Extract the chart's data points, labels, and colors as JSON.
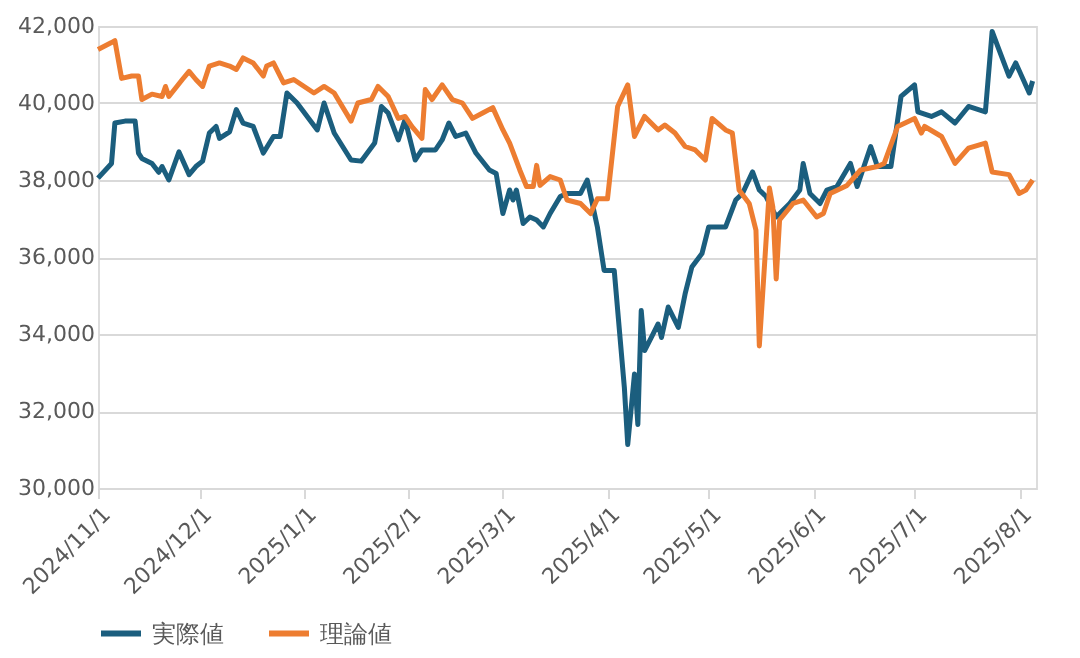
{
  "chart_data": {
    "type": "line",
    "xlim": [
      "2024-11-01",
      "2025-08-06"
    ],
    "xticks": [
      {
        "value": "2024-11-01",
        "label": "2024/11/1"
      },
      {
        "value": "2024-12-01",
        "label": "2024/12/1"
      },
      {
        "value": "2025-01-01",
        "label": "2025/1/1"
      },
      {
        "value": "2025-02-01",
        "label": "2025/2/1"
      },
      {
        "value": "2025-03-01",
        "label": "2025/3/1"
      },
      {
        "value": "2025-04-01",
        "label": "2025/4/1"
      },
      {
        "value": "2025-05-01",
        "label": "2025/5/1"
      },
      {
        "value": "2025-06-01",
        "label": "2025/6/1"
      },
      {
        "value": "2025-07-01",
        "label": "2025/7/1"
      },
      {
        "value": "2025-08-01",
        "label": "2025/8/1"
      }
    ],
    "ylim": [
      30000,
      42000
    ],
    "yticks": [
      {
        "value": 30000,
        "label": "30,000"
      },
      {
        "value": 32000,
        "label": "32,000"
      },
      {
        "value": 34000,
        "label": "34,000"
      },
      {
        "value": 36000,
        "label": "36,000"
      },
      {
        "value": 38000,
        "label": "38,000"
      },
      {
        "value": 40000,
        "label": "40,000"
      },
      {
        "value": 42000,
        "label": "42,000"
      }
    ],
    "grid": "y",
    "legend": "bottom",
    "marker": "none",
    "line_style": "solid",
    "series": [
      {
        "name": "実際値",
        "color": "#1b5e7e",
        "x": [
          "2024-11-01",
          "2024-11-05",
          "2024-11-06",
          "2024-11-09",
          "2024-11-12",
          "2024-11-13",
          "2024-11-14",
          "2024-11-17",
          "2024-11-19",
          "2024-11-20",
          "2024-11-22",
          "2024-11-25",
          "2024-11-28",
          "2024-11-30",
          "2024-12-02",
          "2024-12-04",
          "2024-12-06",
          "2024-12-07",
          "2024-12-10",
          "2024-12-12",
          "2024-12-14",
          "2024-12-17",
          "2024-12-20",
          "2024-12-23",
          "2024-12-25",
          "2024-12-27",
          "2024-12-30",
          "2025-01-05",
          "2025-01-07",
          "2025-01-10",
          "2025-01-15",
          "2025-01-18",
          "2025-01-22",
          "2025-01-24",
          "2025-01-26",
          "2025-01-29",
          "2025-01-31",
          "2025-02-03",
          "2025-02-05",
          "2025-02-09",
          "2025-02-11",
          "2025-02-13",
          "2025-02-15",
          "2025-02-18",
          "2025-02-21",
          "2025-02-25",
          "2025-02-27",
          "2025-03-01",
          "2025-03-03",
          "2025-03-04",
          "2025-03-05",
          "2025-03-07",
          "2025-03-09",
          "2025-03-11",
          "2025-03-13",
          "2025-03-15",
          "2025-03-18",
          "2025-03-20",
          "2025-03-24",
          "2025-03-26",
          "2025-03-29",
          "2025-03-31",
          "2025-04-03",
          "2025-04-06",
          "2025-04-07",
          "2025-04-09",
          "2025-04-10",
          "2025-04-11",
          "2025-04-12",
          "2025-04-14",
          "2025-04-16",
          "2025-04-17",
          "2025-04-19",
          "2025-04-22",
          "2025-04-24",
          "2025-04-26",
          "2025-04-29",
          "2025-05-01",
          "2025-05-06",
          "2025-05-09",
          "2025-05-11",
          "2025-05-14",
          "2025-05-16",
          "2025-05-18",
          "2025-05-21",
          "2025-05-25",
          "2025-05-28",
          "2025-05-29",
          "2025-05-31",
          "2025-06-03",
          "2025-06-05",
          "2025-06-08",
          "2025-06-12",
          "2025-06-14",
          "2025-06-18",
          "2025-06-20",
          "2025-06-24",
          "2025-06-27",
          "2025-07-01",
          "2025-07-02",
          "2025-07-06",
          "2025-07-09",
          "2025-07-13",
          "2025-07-17",
          "2025-07-22",
          "2025-07-24",
          "2025-07-26",
          "2025-07-29",
          "2025-07-31",
          "2025-08-04",
          "2025-08-05"
        ],
        "values": [
          38050,
          38430,
          39480,
          39530,
          39530,
          38700,
          38560,
          38430,
          38200,
          38350,
          38000,
          38730,
          38140,
          38350,
          38490,
          39220,
          39390,
          39080,
          39250,
          39830,
          39480,
          39390,
          38700,
          39130,
          39130,
          40260,
          40000,
          39300,
          40000,
          39220,
          38520,
          38490,
          38960,
          39910,
          39740,
          39040,
          39570,
          38520,
          38780,
          38780,
          39040,
          39480,
          39130,
          39220,
          38700,
          38260,
          38170,
          37130,
          37740,
          37480,
          37740,
          36870,
          37040,
          36960,
          36780,
          37130,
          37570,
          37650,
          37650,
          38000,
          36780,
          35650,
          35650,
          32610,
          31130,
          32960,
          31650,
          34610,
          33570,
          33910,
          34260,
          33910,
          34700,
          34170,
          35040,
          35740,
          36090,
          36780,
          36780,
          37480,
          37650,
          38210,
          37740,
          37570,
          37040,
          37390,
          37740,
          38430,
          37650,
          37390,
          37740,
          37830,
          38430,
          37830,
          38870,
          38350,
          38350,
          40170,
          40470,
          39770,
          39650,
          39770,
          39480,
          39910,
          39770,
          41860,
          41390,
          40700,
          41040,
          40260,
          40570
        ]
      },
      {
        "name": "理論値",
        "color": "#ed7d31",
        "x": [
          "2024-11-01",
          "2024-11-05",
          "2024-11-06",
          "2024-11-08",
          "2024-11-11",
          "2024-11-13",
          "2024-11-14",
          "2024-11-17",
          "2024-11-20",
          "2024-11-21",
          "2024-11-22",
          "2024-11-26",
          "2024-11-28",
          "2024-11-30",
          "2024-12-02",
          "2024-12-04",
          "2024-12-07",
          "2024-12-10",
          "2024-12-12",
          "2024-12-14",
          "2024-12-17",
          "2024-12-20",
          "2024-12-21",
          "2024-12-23",
          "2024-12-26",
          "2024-12-29",
          "2025-01-04",
          "2025-01-07",
          "2025-01-10",
          "2025-01-15",
          "2025-01-17",
          "2025-01-21",
          "2025-01-23",
          "2025-01-26",
          "2025-01-29",
          "2025-01-31",
          "2025-02-02",
          "2025-02-05",
          "2025-02-06",
          "2025-02-08",
          "2025-02-11",
          "2025-02-14",
          "2025-02-17",
          "2025-02-20",
          "2025-02-23",
          "2025-02-26",
          "2025-03-01",
          "2025-03-03",
          "2025-03-06",
          "2025-03-08",
          "2025-03-10",
          "2025-03-11",
          "2025-03-12",
          "2025-03-15",
          "2025-03-18",
          "2025-03-20",
          "2025-03-24",
          "2025-03-27",
          "2025-03-29",
          "2025-04-01",
          "2025-04-04",
          "2025-04-07",
          "2025-04-09",
          "2025-04-12",
          "2025-04-16",
          "2025-04-18",
          "2025-04-21",
          "2025-04-24",
          "2025-04-27",
          "2025-04-30",
          "2025-05-02",
          "2025-05-06",
          "2025-05-08",
          "2025-05-10",
          "2025-05-13",
          "2025-05-15",
          "2025-05-16",
          "2025-05-19",
          "2025-05-20",
          "2025-05-21",
          "2025-05-22",
          "2025-05-26",
          "2025-05-29",
          "2025-06-02",
          "2025-06-04",
          "2025-06-06",
          "2025-06-11",
          "2025-06-15",
          "2025-06-20",
          "2025-06-22",
          "2025-06-26",
          "2025-07-01",
          "2025-07-03",
          "2025-07-04",
          "2025-07-09",
          "2025-07-13",
          "2025-07-17",
          "2025-07-22",
          "2025-07-24",
          "2025-07-29",
          "2025-08-01",
          "2025-08-03",
          "2025-08-05"
        ],
        "values": [
          41390,
          41570,
          41620,
          40640,
          40700,
          40700,
          40090,
          40230,
          40170,
          40430,
          40170,
          40610,
          40820,
          40610,
          40430,
          40960,
          41040,
          40960,
          40870,
          41170,
          41040,
          40700,
          40960,
          41040,
          40520,
          40610,
          40260,
          40430,
          40260,
          39530,
          40000,
          40090,
          40430,
          40170,
          39600,
          39650,
          39390,
          39080,
          40350,
          40090,
          40470,
          40090,
          40000,
          39600,
          39740,
          39880,
          39300,
          38960,
          38260,
          37830,
          37830,
          38380,
          37860,
          38090,
          38000,
          37480,
          37390,
          37130,
          37510,
          37510,
          39910,
          40470,
          39130,
          39650,
          39300,
          39430,
          39220,
          38870,
          38780,
          38520,
          39600,
          39300,
          39220,
          37740,
          37390,
          36700,
          33690,
          37790,
          37300,
          35430,
          36960,
          37390,
          37480,
          37040,
          37130,
          37650,
          37860,
          38260,
          38350,
          38430,
          39390,
          39600,
          39220,
          39390,
          39130,
          38430,
          38830,
          38960,
          38210,
          38140,
          37650,
          37740,
          38000
        ]
      }
    ]
  }
}
